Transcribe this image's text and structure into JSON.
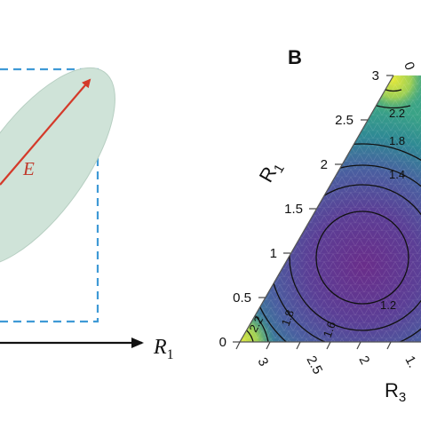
{
  "panel_a": {
    "vector_label": "E",
    "axis_label_main": "R",
    "axis_label_sub": "1",
    "colors": {
      "ellipse_fill": "#cfe3d8",
      "ellipse_stroke": "#b7cfc2",
      "box_dash": "#3f9ad6",
      "vector": "#d43a2a",
      "axis": "#111111"
    }
  },
  "panel_b": {
    "panel_letter": "B",
    "r1_label_main": "R",
    "r1_label_sub": "1",
    "r3_label_main": "R",
    "r3_label_sub": "3",
    "left_ticks": [
      "0",
      "0.5",
      "1",
      "1.5",
      "2",
      "2.5",
      "3"
    ],
    "top_tick": "0",
    "bottom_ticks": [
      "3",
      "2.5",
      "2",
      "1."
    ],
    "contour_labels": [
      "2.2",
      "1.8",
      "1.4",
      "1.2",
      "1.6",
      "1.8",
      "2.2"
    ],
    "colors": {
      "center": "#6a2d8a",
      "mid": "#4a5fa0",
      "outer": "#2a9a8a",
      "corner": "#d8e33a"
    }
  }
}
